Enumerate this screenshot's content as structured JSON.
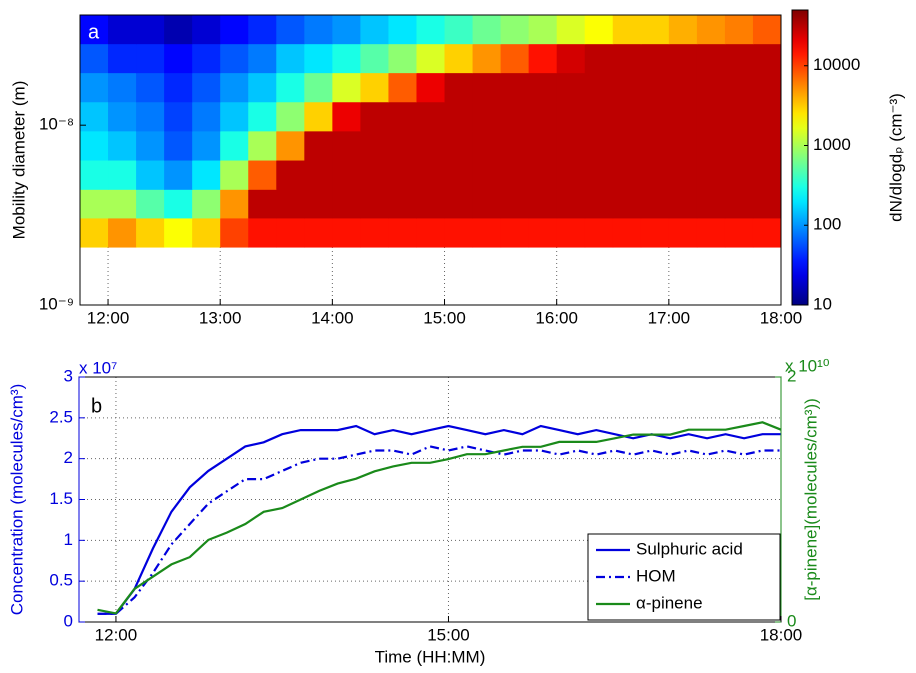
{
  "chart_data": [
    {
      "type": "heatmap",
      "label": "a",
      "ylabel": "Mobility diameter  (m)",
      "xbins": [
        "11:45",
        "12:00",
        "12:15",
        "12:30",
        "12:45",
        "13:00",
        "13:15",
        "13:30",
        "13:45",
        "14:00",
        "14:15",
        "14:30",
        "14:45",
        "15:00",
        "15:15",
        "15:30",
        "15:45",
        "16:00",
        "16:15",
        "16:30",
        "16:45",
        "17:00",
        "17:15",
        "17:30",
        "17:45",
        "18:00"
      ],
      "ybins": [
        2.1e-09,
        3.05e-09,
        4.4e-09,
        6.4e-09,
        9.3e-09,
        1.35e-08,
        1.96e-08,
        2.84e-08,
        4.1e-08
      ],
      "values": [
        [
          3000,
          5000,
          3000,
          2000,
          3000,
          10000,
          15000,
          15000,
          15000,
          15000,
          15000,
          15000,
          15000,
          15000,
          15000,
          15000,
          15000,
          15000,
          15000,
          15000,
          15000,
          15000,
          15000,
          15000,
          15000
        ],
        [
          1000,
          1000,
          500,
          300,
          800,
          5000,
          30000,
          30000,
          30000,
          30000,
          30000,
          30000,
          30000,
          30000,
          30000,
          30000,
          30000,
          30000,
          30000,
          30000,
          30000,
          30000,
          30000,
          30000,
          30000
        ],
        [
          300,
          300,
          150,
          100,
          200,
          1000,
          8000,
          30000,
          30000,
          30000,
          30000,
          30000,
          30000,
          30000,
          30000,
          30000,
          30000,
          30000,
          30000,
          30000,
          30000,
          30000,
          30000,
          30000,
          30000
        ],
        [
          200,
          150,
          100,
          60,
          100,
          300,
          1000,
          5000,
          30000,
          30000,
          30000,
          30000,
          30000,
          30000,
          30000,
          30000,
          30000,
          30000,
          30000,
          30000,
          30000,
          30000,
          30000,
          30000,
          30000
        ],
        [
          150,
          100,
          80,
          50,
          80,
          150,
          300,
          800,
          3000,
          20000,
          30000,
          30000,
          30000,
          30000,
          30000,
          30000,
          30000,
          30000,
          30000,
          30000,
          30000,
          30000,
          30000,
          30000,
          30000
        ],
        [
          100,
          80,
          60,
          40,
          60,
          100,
          150,
          300,
          600,
          1500,
          3000,
          8000,
          20000,
          30000,
          30000,
          30000,
          30000,
          30000,
          30000,
          30000,
          30000,
          30000,
          30000,
          30000,
          30000
        ],
        [
          60,
          40,
          40,
          30,
          40,
          60,
          80,
          150,
          200,
          300,
          500,
          800,
          1500,
          3000,
          5000,
          8000,
          15000,
          25000,
          30000,
          30000,
          30000,
          30000,
          30000,
          30000,
          30000
        ],
        [
          30,
          20,
          20,
          15,
          20,
          30,
          40,
          60,
          80,
          100,
          150,
          200,
          300,
          400,
          600,
          800,
          1000,
          1500,
          2000,
          3000,
          3000,
          4000,
          5000,
          6000,
          8000
        ]
      ],
      "xlim": [
        "11:45",
        "18:00"
      ],
      "xticks": [
        "12:00",
        "13:00",
        "14:00",
        "15:00",
        "16:00",
        "17:00",
        "18:00"
      ],
      "ylim": [
        1e-09,
        4.1e-08
      ],
      "yscale": "log",
      "yticks": [
        {
          "value": 1e-09,
          "label": "10⁻⁹"
        },
        {
          "value": 1e-08,
          "label": "10⁻⁸"
        }
      ],
      "grid": true,
      "colorbar": {
        "label": "dN/dlogdₚ (cm⁻³)",
        "clim": [
          10,
          50000
        ],
        "scale": "log",
        "colormap": "jet",
        "ticks": [
          10,
          100,
          1000,
          10000
        ]
      }
    },
    {
      "type": "line",
      "label": "b",
      "xlabel": "Time (HH:MM)",
      "ylabel": "Concentration (molecules/cm³)",
      "y2label": "[α-pinene](molecules/cm³))",
      "yoffset": "x 10⁷",
      "y2offset": "x 10¹⁰",
      "x": [
        "11:50",
        "12:00",
        "12:10",
        "12:20",
        "12:30",
        "12:40",
        "12:50",
        "13:00",
        "13:10",
        "13:20",
        "13:30",
        "13:40",
        "13:50",
        "14:00",
        "14:10",
        "14:20",
        "14:30",
        "14:40",
        "14:50",
        "15:00",
        "15:10",
        "15:20",
        "15:30",
        "15:40",
        "15:50",
        "16:00",
        "16:10",
        "16:20",
        "16:30",
        "16:40",
        "16:50",
        "17:00",
        "17:10",
        "17:20",
        "17:30",
        "17:40",
        "17:50",
        "18:00"
      ],
      "xlim": [
        "11:40",
        "18:00"
      ],
      "xticks": [
        "12:00",
        "15:00",
        "18:00"
      ],
      "ylim": [
        0,
        3
      ],
      "yticks": [
        0,
        0.5,
        1,
        1.5,
        2,
        2.5,
        3
      ],
      "ycolor": "#0000dd",
      "y2lim": [
        0,
        2
      ],
      "y2ticks": [
        0,
        2
      ],
      "y2color": "#1a8a1a",
      "grid": true,
      "legend": "lower right",
      "series": [
        {
          "name": "Sulphuric acid",
          "color": "#0000dd",
          "linestyle": "solid",
          "values": [
            0.1,
            0.1,
            0.4,
            0.9,
            1.35,
            1.65,
            1.85,
            2.0,
            2.15,
            2.2,
            2.3,
            2.35,
            2.35,
            2.35,
            2.4,
            2.3,
            2.35,
            2.3,
            2.35,
            2.4,
            2.35,
            2.3,
            2.35,
            2.3,
            2.4,
            2.35,
            2.3,
            2.35,
            2.3,
            2.25,
            2.3,
            2.25,
            2.3,
            2.25,
            2.3,
            2.25,
            2.3,
            2.3
          ]
        },
        {
          "name": "HOM",
          "color": "#0000dd",
          "linestyle": "dashdot",
          "values": [
            0.1,
            0.1,
            0.3,
            0.6,
            0.95,
            1.2,
            1.45,
            1.6,
            1.75,
            1.75,
            1.85,
            1.95,
            2.0,
            2.0,
            2.05,
            2.1,
            2.1,
            2.05,
            2.15,
            2.1,
            2.15,
            2.1,
            2.05,
            2.1,
            2.1,
            2.05,
            2.1,
            2.05,
            2.1,
            2.05,
            2.1,
            2.05,
            2.1,
            2.05,
            2.1,
            2.05,
            2.1,
            2.1
          ]
        },
        {
          "name": "α-pinene",
          "color": "#1a8a1a",
          "linestyle": "solid",
          "axis": "y2",
          "values": [
            0.1,
            0.07,
            0.27,
            0.37,
            0.47,
            0.53,
            0.67,
            0.73,
            0.8,
            0.9,
            0.93,
            1.0,
            1.07,
            1.13,
            1.17,
            1.23,
            1.27,
            1.3,
            1.3,
            1.33,
            1.37,
            1.37,
            1.4,
            1.43,
            1.43,
            1.47,
            1.47,
            1.47,
            1.5,
            1.53,
            1.53,
            1.53,
            1.57,
            1.57,
            1.57,
            1.6,
            1.63,
            1.57
          ]
        }
      ]
    }
  ]
}
